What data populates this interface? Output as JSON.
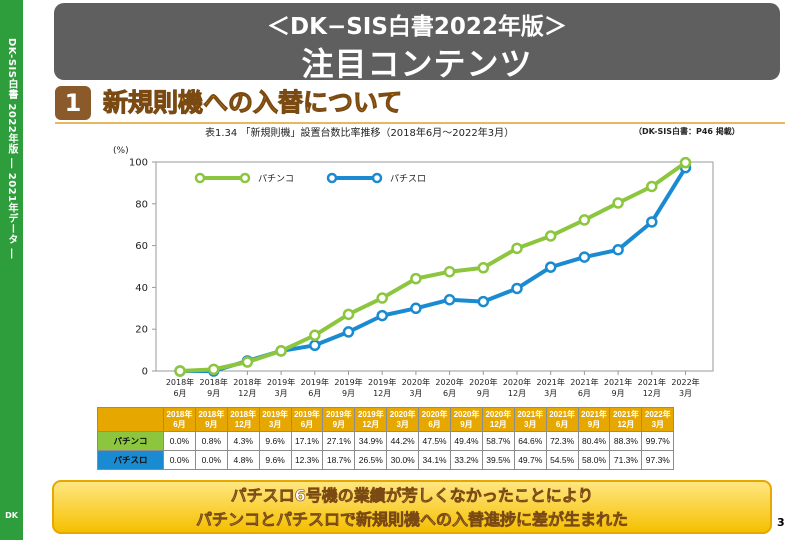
{
  "header": {
    "title": "＜DK−SIS白書2022年版＞",
    "subtitle": "注目コンテンツ"
  },
  "sidebar": {
    "vertical_text": "DK-SIS白書 2022年版 ― 2021年データ ―",
    "logo_text": "DK"
  },
  "section": {
    "number": "1",
    "title": "新規則機への入替について"
  },
  "chart_caption": "表1.34 「新規則機」設置台数比率推移（2018年6月～2022年3月）",
  "chart_source": "（DK-SIS白書：P46 掲載）",
  "chart_data": {
    "type": "line",
    "ylabel": "(%)",
    "ylim": [
      0,
      100
    ],
    "yticks": [
      0,
      20,
      40,
      60,
      80,
      100
    ],
    "grid": false,
    "legend_position": "top-left",
    "categories": [
      [
        "2018年",
        "6月"
      ],
      [
        "2018年",
        "9月"
      ],
      [
        "2018年",
        "12月"
      ],
      [
        "2019年",
        "3月"
      ],
      [
        "2019年",
        "6月"
      ],
      [
        "2019年",
        "9月"
      ],
      [
        "2019年",
        "12月"
      ],
      [
        "2020年",
        "3月"
      ],
      [
        "2020年",
        "6月"
      ],
      [
        "2020年",
        "9月"
      ],
      [
        "2020年",
        "12月"
      ],
      [
        "2021年",
        "3月"
      ],
      [
        "2021年",
        "6月"
      ],
      [
        "2021年",
        "9月"
      ],
      [
        "2021年",
        "12月"
      ],
      [
        "2022年",
        "3月"
      ]
    ],
    "series": [
      {
        "name": "パチンコ",
        "color": "#8cc63f",
        "values": [
          0.0,
          0.8,
          4.3,
          9.6,
          17.1,
          27.1,
          34.9,
          44.2,
          47.5,
          49.4,
          58.7,
          64.6,
          72.3,
          80.4,
          88.3,
          99.7
        ],
        "labels": [
          "0.0%",
          "0.8%",
          "4.3%",
          "9.6%",
          "17.1%",
          "27.1%",
          "34.9%",
          "44.2%",
          "47.5%",
          "49.4%",
          "58.7%",
          "64.6%",
          "72.3%",
          "80.4%",
          "88.3%",
          "99.7%"
        ]
      },
      {
        "name": "パチスロ",
        "color": "#1b8bd1",
        "values": [
          0.0,
          0.0,
          4.8,
          9.6,
          12.3,
          18.7,
          26.5,
          30.0,
          34.1,
          33.2,
          39.5,
          49.7,
          54.5,
          58.0,
          71.3,
          97.3
        ],
        "labels": [
          "0.0%",
          "0.0%",
          "4.8%",
          "9.6%",
          "12.3%",
          "18.7%",
          "26.5%",
          "30.0%",
          "34.1%",
          "33.2%",
          "39.5%",
          "49.7%",
          "54.5%",
          "58.0%",
          "71.3%",
          "97.3%"
        ]
      }
    ]
  },
  "banner": {
    "line1": "パチスロ6号機の業績が芳しくなかったことにより",
    "line2": "パチンコとパチスロで新規則機への入替進捗に差が生まれた"
  },
  "page_number": "3"
}
